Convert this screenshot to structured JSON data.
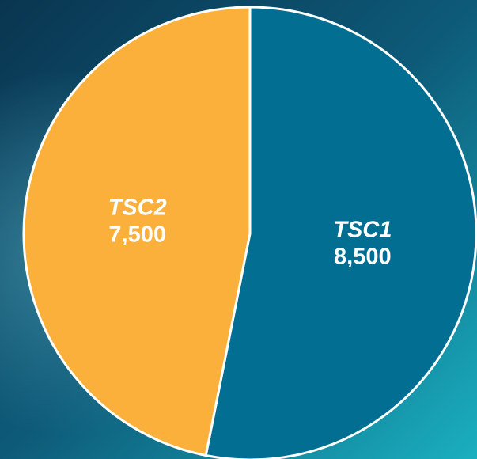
{
  "chart_data": {
    "type": "pie",
    "categories": [
      "TSC1",
      "TSC2"
    ],
    "values": [
      8500,
      7500
    ],
    "value_labels": [
      "8,500",
      "7,500"
    ],
    "colors": [
      "#016e92",
      "#fbb03b"
    ]
  }
}
